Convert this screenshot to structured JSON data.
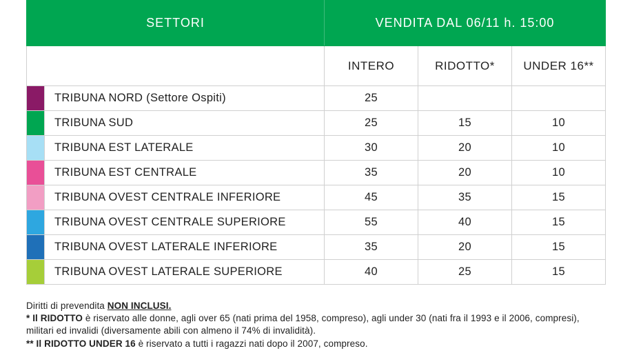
{
  "header": {
    "left": "SETTORI",
    "right": "VENDITA DAL 06/11 h. 15:00",
    "bg": "#00a651",
    "fg": "#ffffff"
  },
  "price_columns": [
    "INTERO",
    "RIDOTTO*",
    "UNDER 16**"
  ],
  "rows": [
    {
      "color": "#8a1a66",
      "label": "TRIBUNA NORD (Settore Ospiti)",
      "prices": [
        "25",
        "",
        ""
      ]
    },
    {
      "color": "#00a651",
      "label": "TRIBUNA SUD",
      "prices": [
        "25",
        "15",
        "10"
      ]
    },
    {
      "color": "#a7dff5",
      "label": "TRIBUNA EST LATERALE",
      "prices": [
        "30",
        "20",
        "10"
      ]
    },
    {
      "color": "#e94f97",
      "label": "TRIBUNA EST CENTRALE",
      "prices": [
        "35",
        "20",
        "10"
      ]
    },
    {
      "color": "#f29ec4",
      "label": "TRIBUNA OVEST CENTRALE INFERIORE",
      "prices": [
        "45",
        "35",
        "15"
      ]
    },
    {
      "color": "#2ea7e0",
      "label": "TRIBUNA OVEST CENTRALE SUPERIORE",
      "prices": [
        "55",
        "40",
        "15"
      ]
    },
    {
      "color": "#1f70b8",
      "label": "TRIBUNA OVEST LATERALE INFERIORE",
      "prices": [
        "35",
        "20",
        "15"
      ]
    },
    {
      "color": "#a6ce39",
      "label": "TRIBUNA OVEST LATERALE SUPERIORE",
      "prices": [
        "40",
        "25",
        "15"
      ]
    }
  ],
  "notes": {
    "line1_a": "Diritti di prevendita ",
    "line1_b": "NON INCLUSI.",
    "line2_a": "* Il RIDOTTO",
    "line2_b": " è riservato alle donne, agli over 65 (nati prima del 1958, compreso), agli under 30 (nati fra il 1993 e il 2006, compresi), militari ed invalidi (diversamente abili con almeno il 74% di invalidità).",
    "line3_a": "** Il RIDOTTO UNDER 16",
    "line3_b": " è riservato a tutti i ragazzi nati dopo il 2007, compreso."
  }
}
